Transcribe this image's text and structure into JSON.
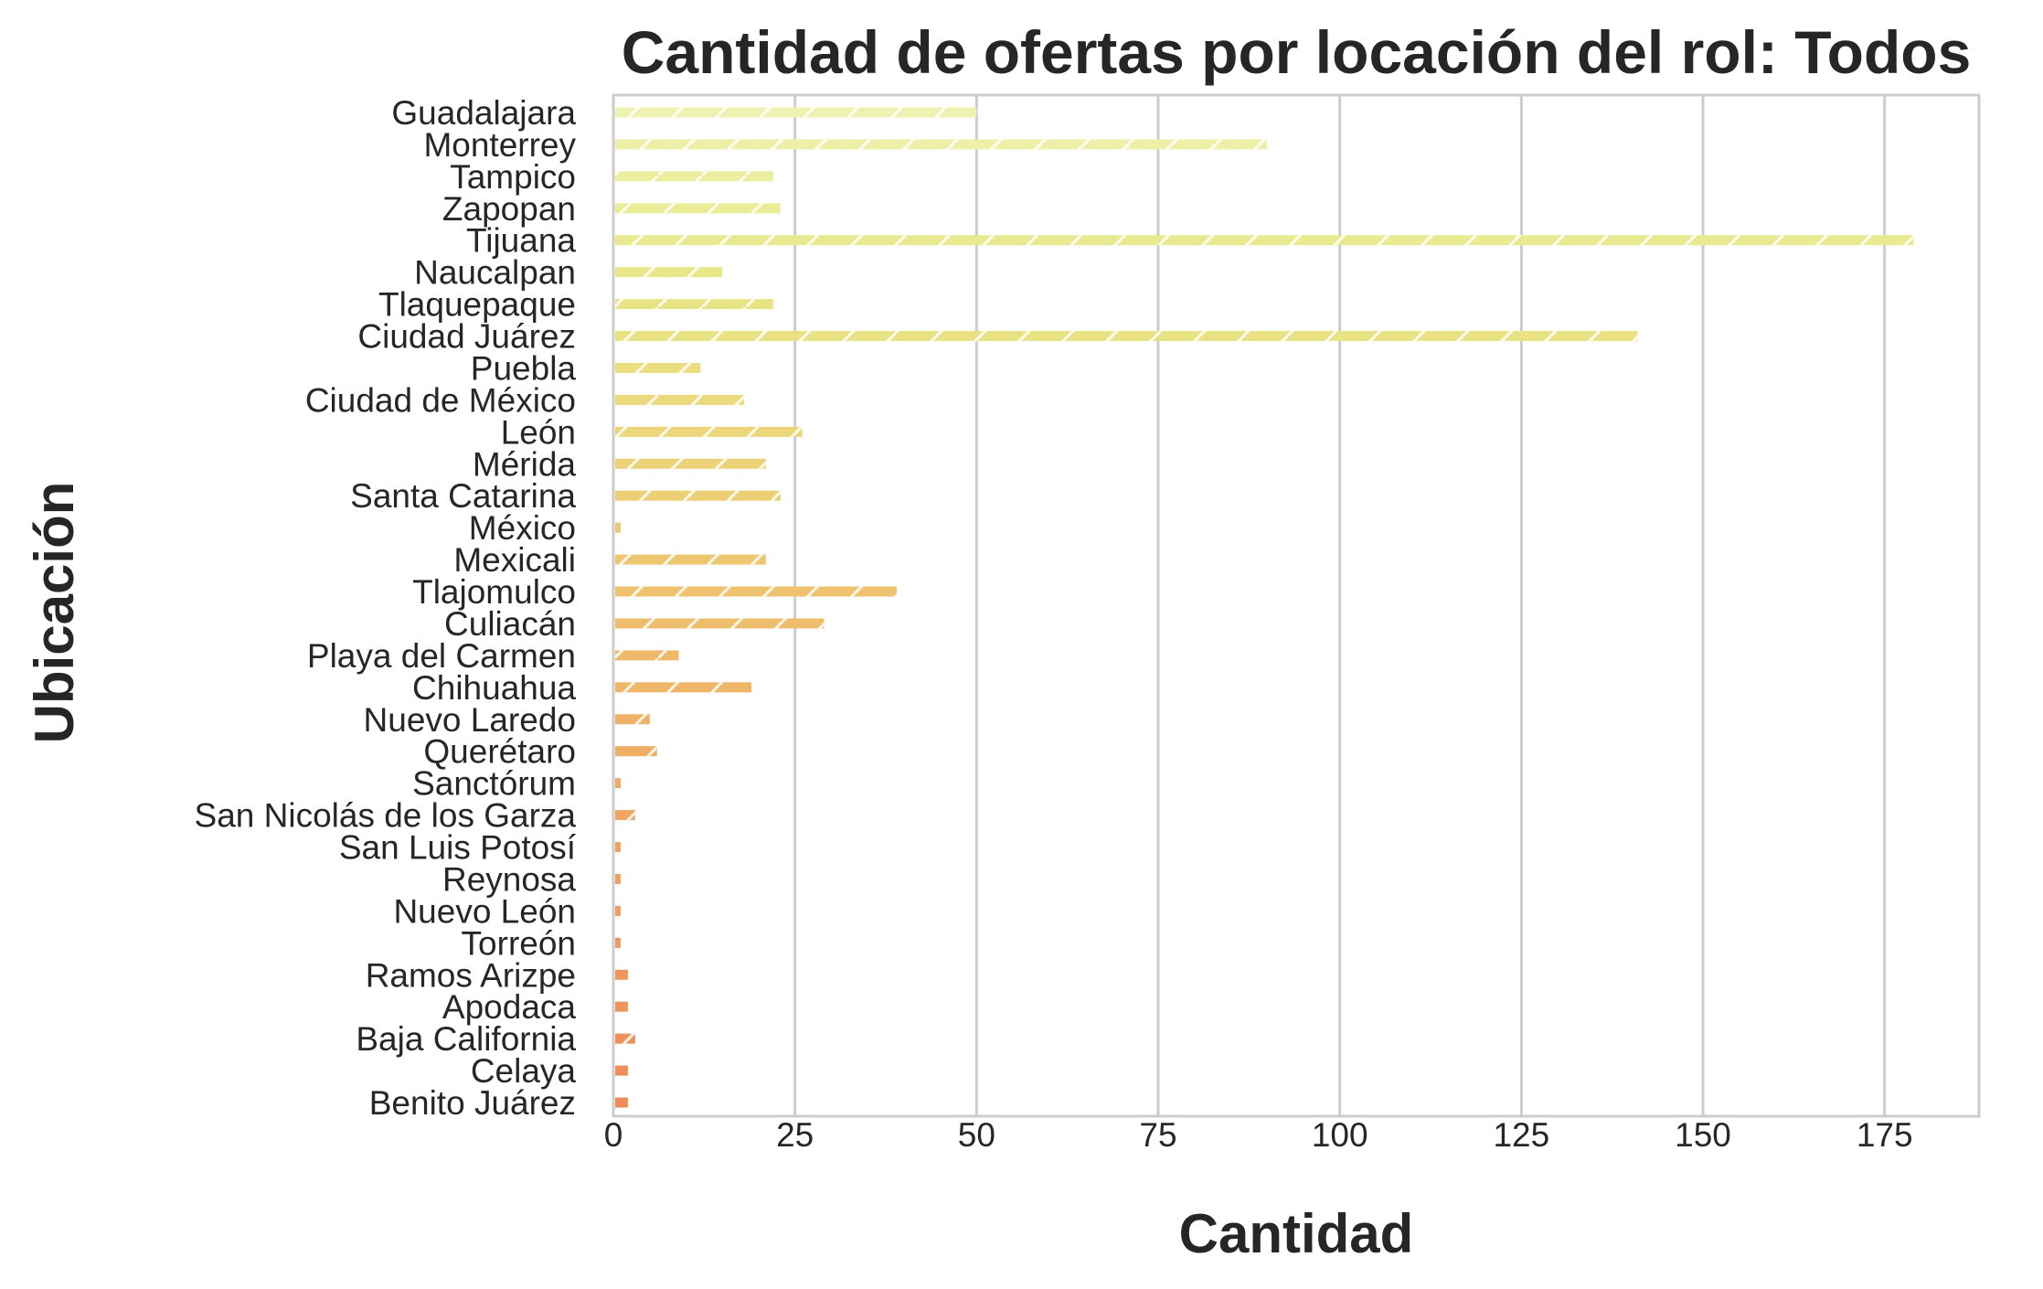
{
  "chart_data": {
    "type": "bar",
    "orientation": "horizontal",
    "title": "Cantidad de ofertas por locación del rol: Todos",
    "xlabel": "Cantidad",
    "ylabel": "Ubicación",
    "xlim": [
      0,
      188
    ],
    "xticks": [
      "0",
      "25",
      "50",
      "75",
      "100",
      "125",
      "150",
      "175"
    ],
    "grid": true,
    "categories": [
      "Guadalajara",
      "Monterrey",
      "Tampico",
      "Zapopan",
      "Tijuana",
      "Naucalpan",
      "Tlaquepaque",
      "Ciudad Juárez",
      "Puebla",
      "Ciudad de México",
      "León",
      "Mérida",
      "Santa Catarina",
      "México",
      "Mexicali",
      "Tlajomulco",
      "Culiacán",
      "Playa del Carmen",
      "Chihuahua",
      "Nuevo Laredo",
      "Querétaro",
      "Sanctórum",
      "San Nicolás de los Garza",
      "San Luis Potosí",
      "Reynosa",
      "Nuevo León",
      "Torreón",
      "Ramos Arizpe",
      "Apodaca",
      "Baja California",
      "Celaya",
      "Benito Juárez"
    ],
    "values": [
      50,
      90,
      22,
      23,
      179,
      15,
      22,
      141,
      12,
      18,
      26,
      21,
      23,
      1,
      21,
      39,
      29,
      9,
      19,
      5,
      6,
      1,
      3,
      1,
      1,
      1,
      1,
      2,
      2,
      3,
      2,
      2
    ],
    "colors": [
      "#eef2b0",
      "#eef0a8",
      "#ecee9f",
      "#eaec98",
      "#e9ea90",
      "#e8e789",
      "#e8e485",
      "#e9e283",
      "#eade80",
      "#ebda7d",
      "#ebd67a",
      "#ecd277",
      "#ecce74",
      "#edca72",
      "#edc670",
      "#eec26e",
      "#eebe6c",
      "#eeba6a",
      "#efb668",
      "#efb266",
      "#efae64",
      "#efaa62",
      "#efa660",
      "#efa35f",
      "#efa05e",
      "#ef9d5d",
      "#ef9a5c",
      "#ef975b",
      "#ef945a",
      "#ef9159",
      "#ef8e58",
      "#ef8b57"
    ]
  }
}
